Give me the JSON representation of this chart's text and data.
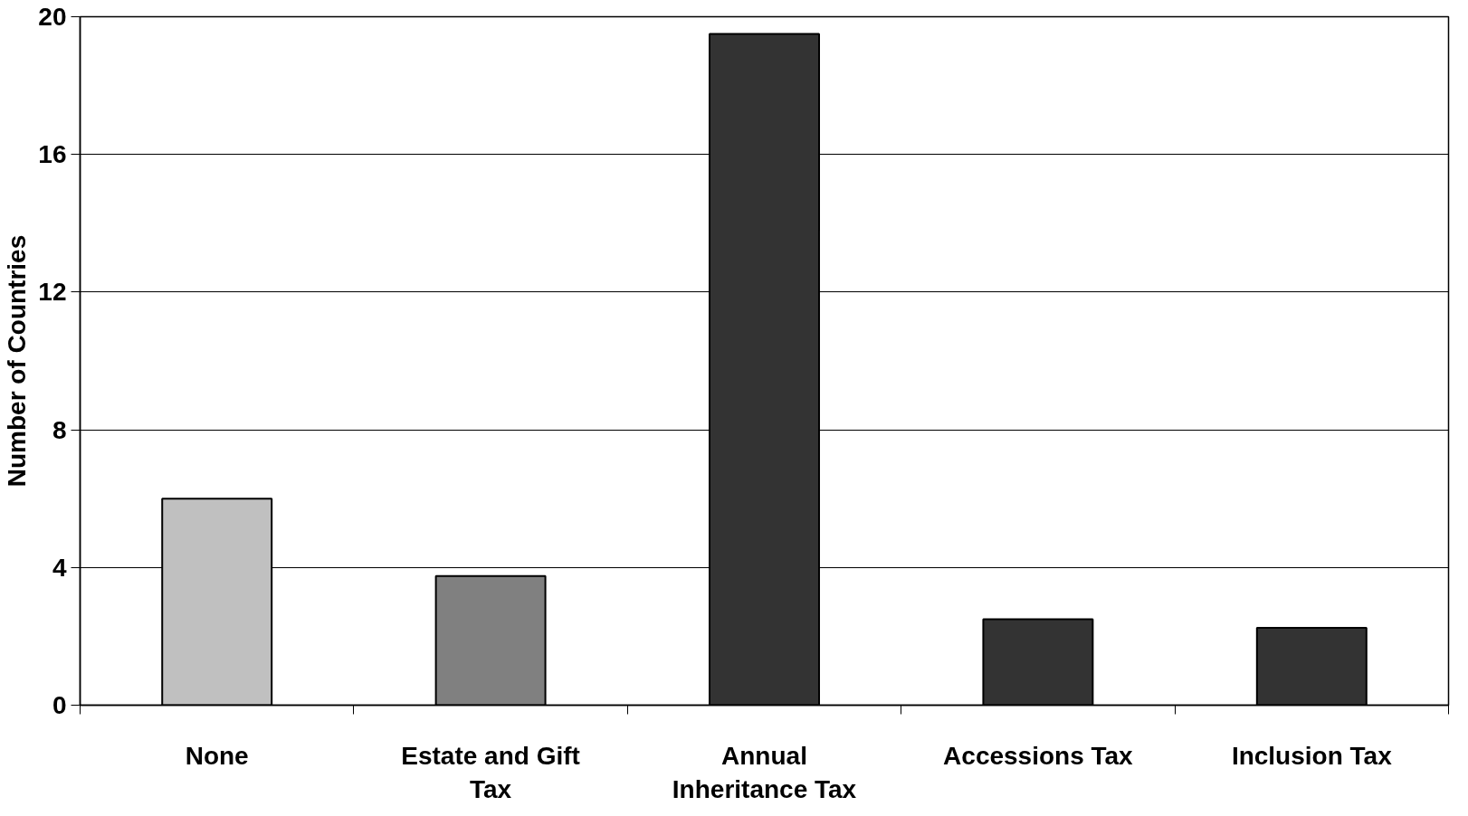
{
  "chart_data": {
    "type": "bar",
    "ylabel": "Number of Countries",
    "categories": [
      "None",
      "Estate and Gift Tax",
      "Annual Inheritance Tax",
      "Accessions Tax",
      "Inclusion Tax"
    ],
    "values": [
      6,
      3.75,
      19.5,
      2.5,
      2.25
    ],
    "colors": [
      "#c0c0c0",
      "#808080",
      "#333333",
      "#333333",
      "#333333"
    ],
    "ylim": [
      0,
      20
    ],
    "yticks": [
      0,
      4,
      8,
      12,
      16,
      20
    ],
    "grid": "y"
  }
}
